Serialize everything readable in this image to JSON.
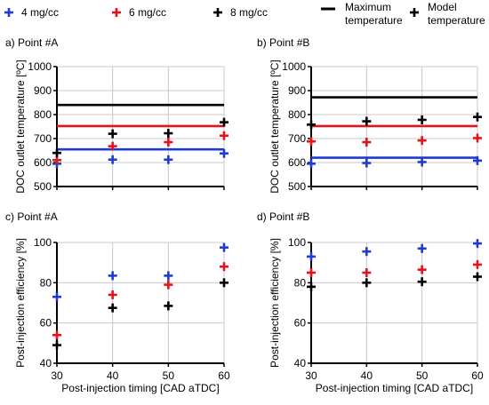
{
  "legend": {
    "items": [
      {
        "label": "4 mg/cc",
        "color": "#1f3bd6",
        "marker": "plus"
      },
      {
        "label": "6 mg/cc",
        "color": "#e8121b",
        "marker": "plus"
      },
      {
        "label": "8 mg/cc",
        "color": "#000000",
        "marker": "plus"
      },
      {
        "label": "Maximum\ntemperature",
        "color": "#000000",
        "marker": "line"
      },
      {
        "label": "Model\ntemperature",
        "color": "#000000",
        "marker": "plus"
      }
    ]
  },
  "chart_data": [
    {
      "type": "scatter",
      "title": "a) Point #A",
      "ylabel": "DOC outlet temperature [ºC]",
      "xlabel": "",
      "xlim": [
        30,
        60
      ],
      "ylim": [
        500,
        1000
      ],
      "xticks": [
        30,
        40,
        50,
        60
      ],
      "yticks": [
        500,
        600,
        700,
        800,
        900,
        1000
      ],
      "show_xtick_labels": false,
      "grid": true,
      "series": [
        {
          "name": "4 mg/cc",
          "color": "#1f3bd6",
          "x": [
            30,
            40,
            50,
            60
          ],
          "y": [
            595,
            612,
            612,
            638
          ]
        },
        {
          "name": "6 mg/cc",
          "color": "#e8121b",
          "x": [
            30,
            40,
            50,
            60
          ],
          "y": [
            610,
            668,
            685,
            712
          ]
        },
        {
          "name": "8 mg/cc",
          "color": "#000000",
          "x": [
            30,
            40,
            50,
            60
          ],
          "y": [
            640,
            720,
            722,
            768
          ]
        }
      ],
      "hlines": [
        {
          "color": "#1f3bd6",
          "y": 655
        },
        {
          "color": "#e8121b",
          "y": 752
        },
        {
          "color": "#000000",
          "y": 840
        }
      ]
    },
    {
      "type": "scatter",
      "title": "b) Point #B",
      "ylabel": "DOC outlet temperature [ºC]",
      "xlabel": "",
      "xlim": [
        30,
        60
      ],
      "ylim": [
        500,
        1000
      ],
      "xticks": [
        30,
        40,
        50,
        60
      ],
      "yticks": [
        500,
        600,
        700,
        800,
        900,
        1000
      ],
      "show_xtick_labels": false,
      "grid": true,
      "series": [
        {
          "name": "4 mg/cc",
          "color": "#1f3bd6",
          "x": [
            30,
            40,
            50,
            60
          ],
          "y": [
            595,
            598,
            602,
            608
          ]
        },
        {
          "name": "6 mg/cc",
          "color": "#e8121b",
          "x": [
            30,
            40,
            50,
            60
          ],
          "y": [
            688,
            685,
            692,
            702
          ]
        },
        {
          "name": "8 mg/cc",
          "color": "#000000",
          "x": [
            30,
            40,
            50,
            60
          ],
          "y": [
            758,
            772,
            778,
            790
          ]
        }
      ],
      "hlines": [
        {
          "color": "#1f3bd6",
          "y": 620
        },
        {
          "color": "#e8121b",
          "y": 752
        },
        {
          "color": "#000000",
          "y": 872
        }
      ]
    },
    {
      "type": "scatter",
      "title": "c) Point #A",
      "ylabel": "Post-injection efficiency [%]",
      "xlabel": "Post-injection timing [CAD aTDC]",
      "xlim": [
        30,
        60
      ],
      "ylim": [
        40,
        100
      ],
      "xticks": [
        30,
        40,
        50,
        60
      ],
      "yticks": [
        40,
        60,
        80,
        100
      ],
      "show_xtick_labels": true,
      "grid": true,
      "series": [
        {
          "name": "4 mg/cc",
          "color": "#1f3bd6",
          "x": [
            30,
            40,
            50,
            60
          ],
          "y": [
            73,
            83.5,
            83.5,
            97.5
          ]
        },
        {
          "name": "6 mg/cc",
          "color": "#e8121b",
          "x": [
            30,
            40,
            50,
            60
          ],
          "y": [
            54,
            74,
            79,
            88
          ]
        },
        {
          "name": "8 mg/cc",
          "color": "#000000",
          "x": [
            30,
            40,
            50,
            60
          ],
          "y": [
            49,
            67.5,
            68.5,
            80
          ]
        }
      ],
      "hlines": []
    },
    {
      "type": "scatter",
      "title": "d) Point #B",
      "ylabel": "Post-injection efficiency [%]",
      "xlabel": "Post-injection timing [CAD aTDC]",
      "xlim": [
        30,
        60
      ],
      "ylim": [
        40,
        100
      ],
      "xticks": [
        30,
        40,
        50,
        60
      ],
      "yticks": [
        40,
        60,
        80,
        100
      ],
      "show_xtick_labels": true,
      "grid": true,
      "series": [
        {
          "name": "4 mg/cc",
          "color": "#1f3bd6",
          "x": [
            30,
            40,
            50,
            60
          ],
          "y": [
            93,
            95.5,
            97,
            99.5
          ]
        },
        {
          "name": "6 mg/cc",
          "color": "#e8121b",
          "x": [
            30,
            40,
            50,
            60
          ],
          "y": [
            85,
            85,
            86.5,
            89
          ]
        },
        {
          "name": "8 mg/cc",
          "color": "#000000",
          "x": [
            30,
            40,
            50,
            60
          ],
          "y": [
            78,
            80,
            80.5,
            83
          ]
        }
      ],
      "hlines": []
    }
  ]
}
